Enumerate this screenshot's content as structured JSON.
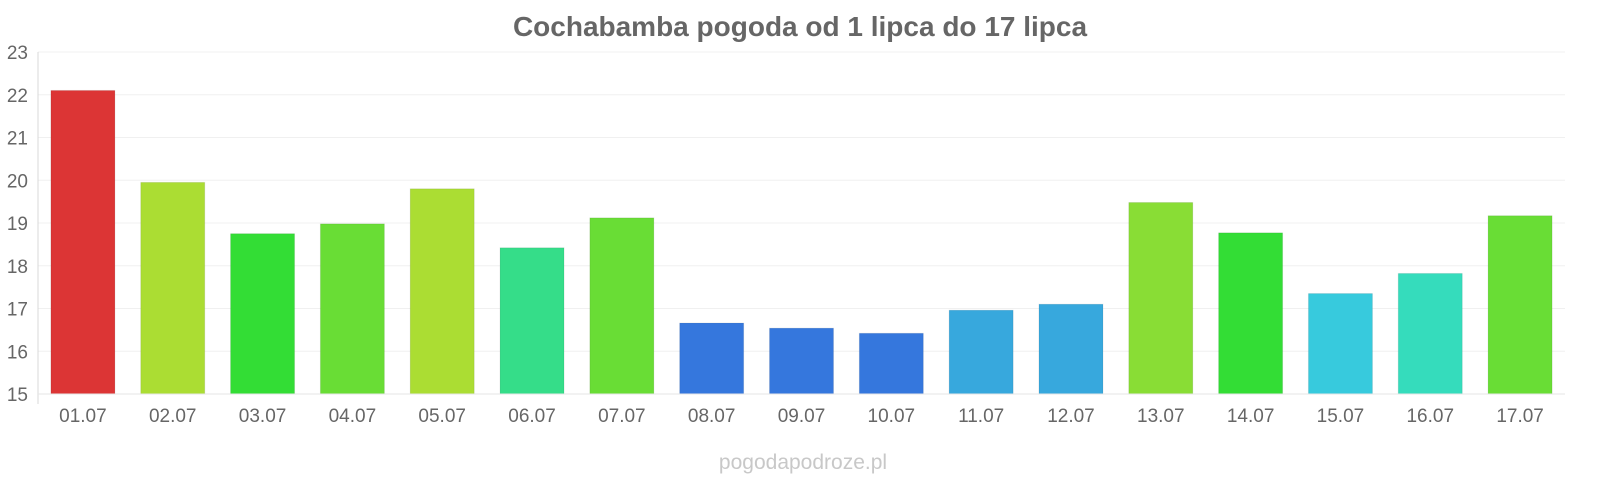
{
  "chart_data": {
    "type": "bar",
    "title": "Cochabamba pogoda od 1 lipca do 17 lipca",
    "xlabel": "",
    "ylabel": "",
    "ylim": [
      15,
      23
    ],
    "yticks": [
      "15",
      "16",
      "17",
      "18",
      "19",
      "20",
      "21",
      "22",
      "23"
    ],
    "grid": true,
    "categories": [
      "01.07",
      "02.07",
      "03.07",
      "04.07",
      "05.07",
      "06.07",
      "07.07",
      "08.07",
      "09.07",
      "10.07",
      "11.07",
      "12.07",
      "13.07",
      "14.07",
      "15.07",
      "16.07",
      "17.07"
    ],
    "values": [
      22.1,
      19.95,
      18.75,
      18.98,
      19.8,
      18.42,
      19.12,
      16.66,
      16.54,
      16.42,
      16.96,
      17.1,
      19.48,
      18.77,
      17.35,
      17.82,
      19.17
    ],
    "colors": [
      "#dc3535",
      "#abdd33",
      "#33dd35",
      "#69dd35",
      "#abdd33",
      "#35dd89",
      "#69dd35",
      "#3577dd",
      "#3577dd",
      "#3577dd",
      "#37a8dd",
      "#37a8dd",
      "#89dd35",
      "#33dd35",
      "#37cadd",
      "#35dcbc",
      "#69dd35"
    ]
  },
  "footer": {
    "watermark": "pogodapodroze.pl"
  }
}
